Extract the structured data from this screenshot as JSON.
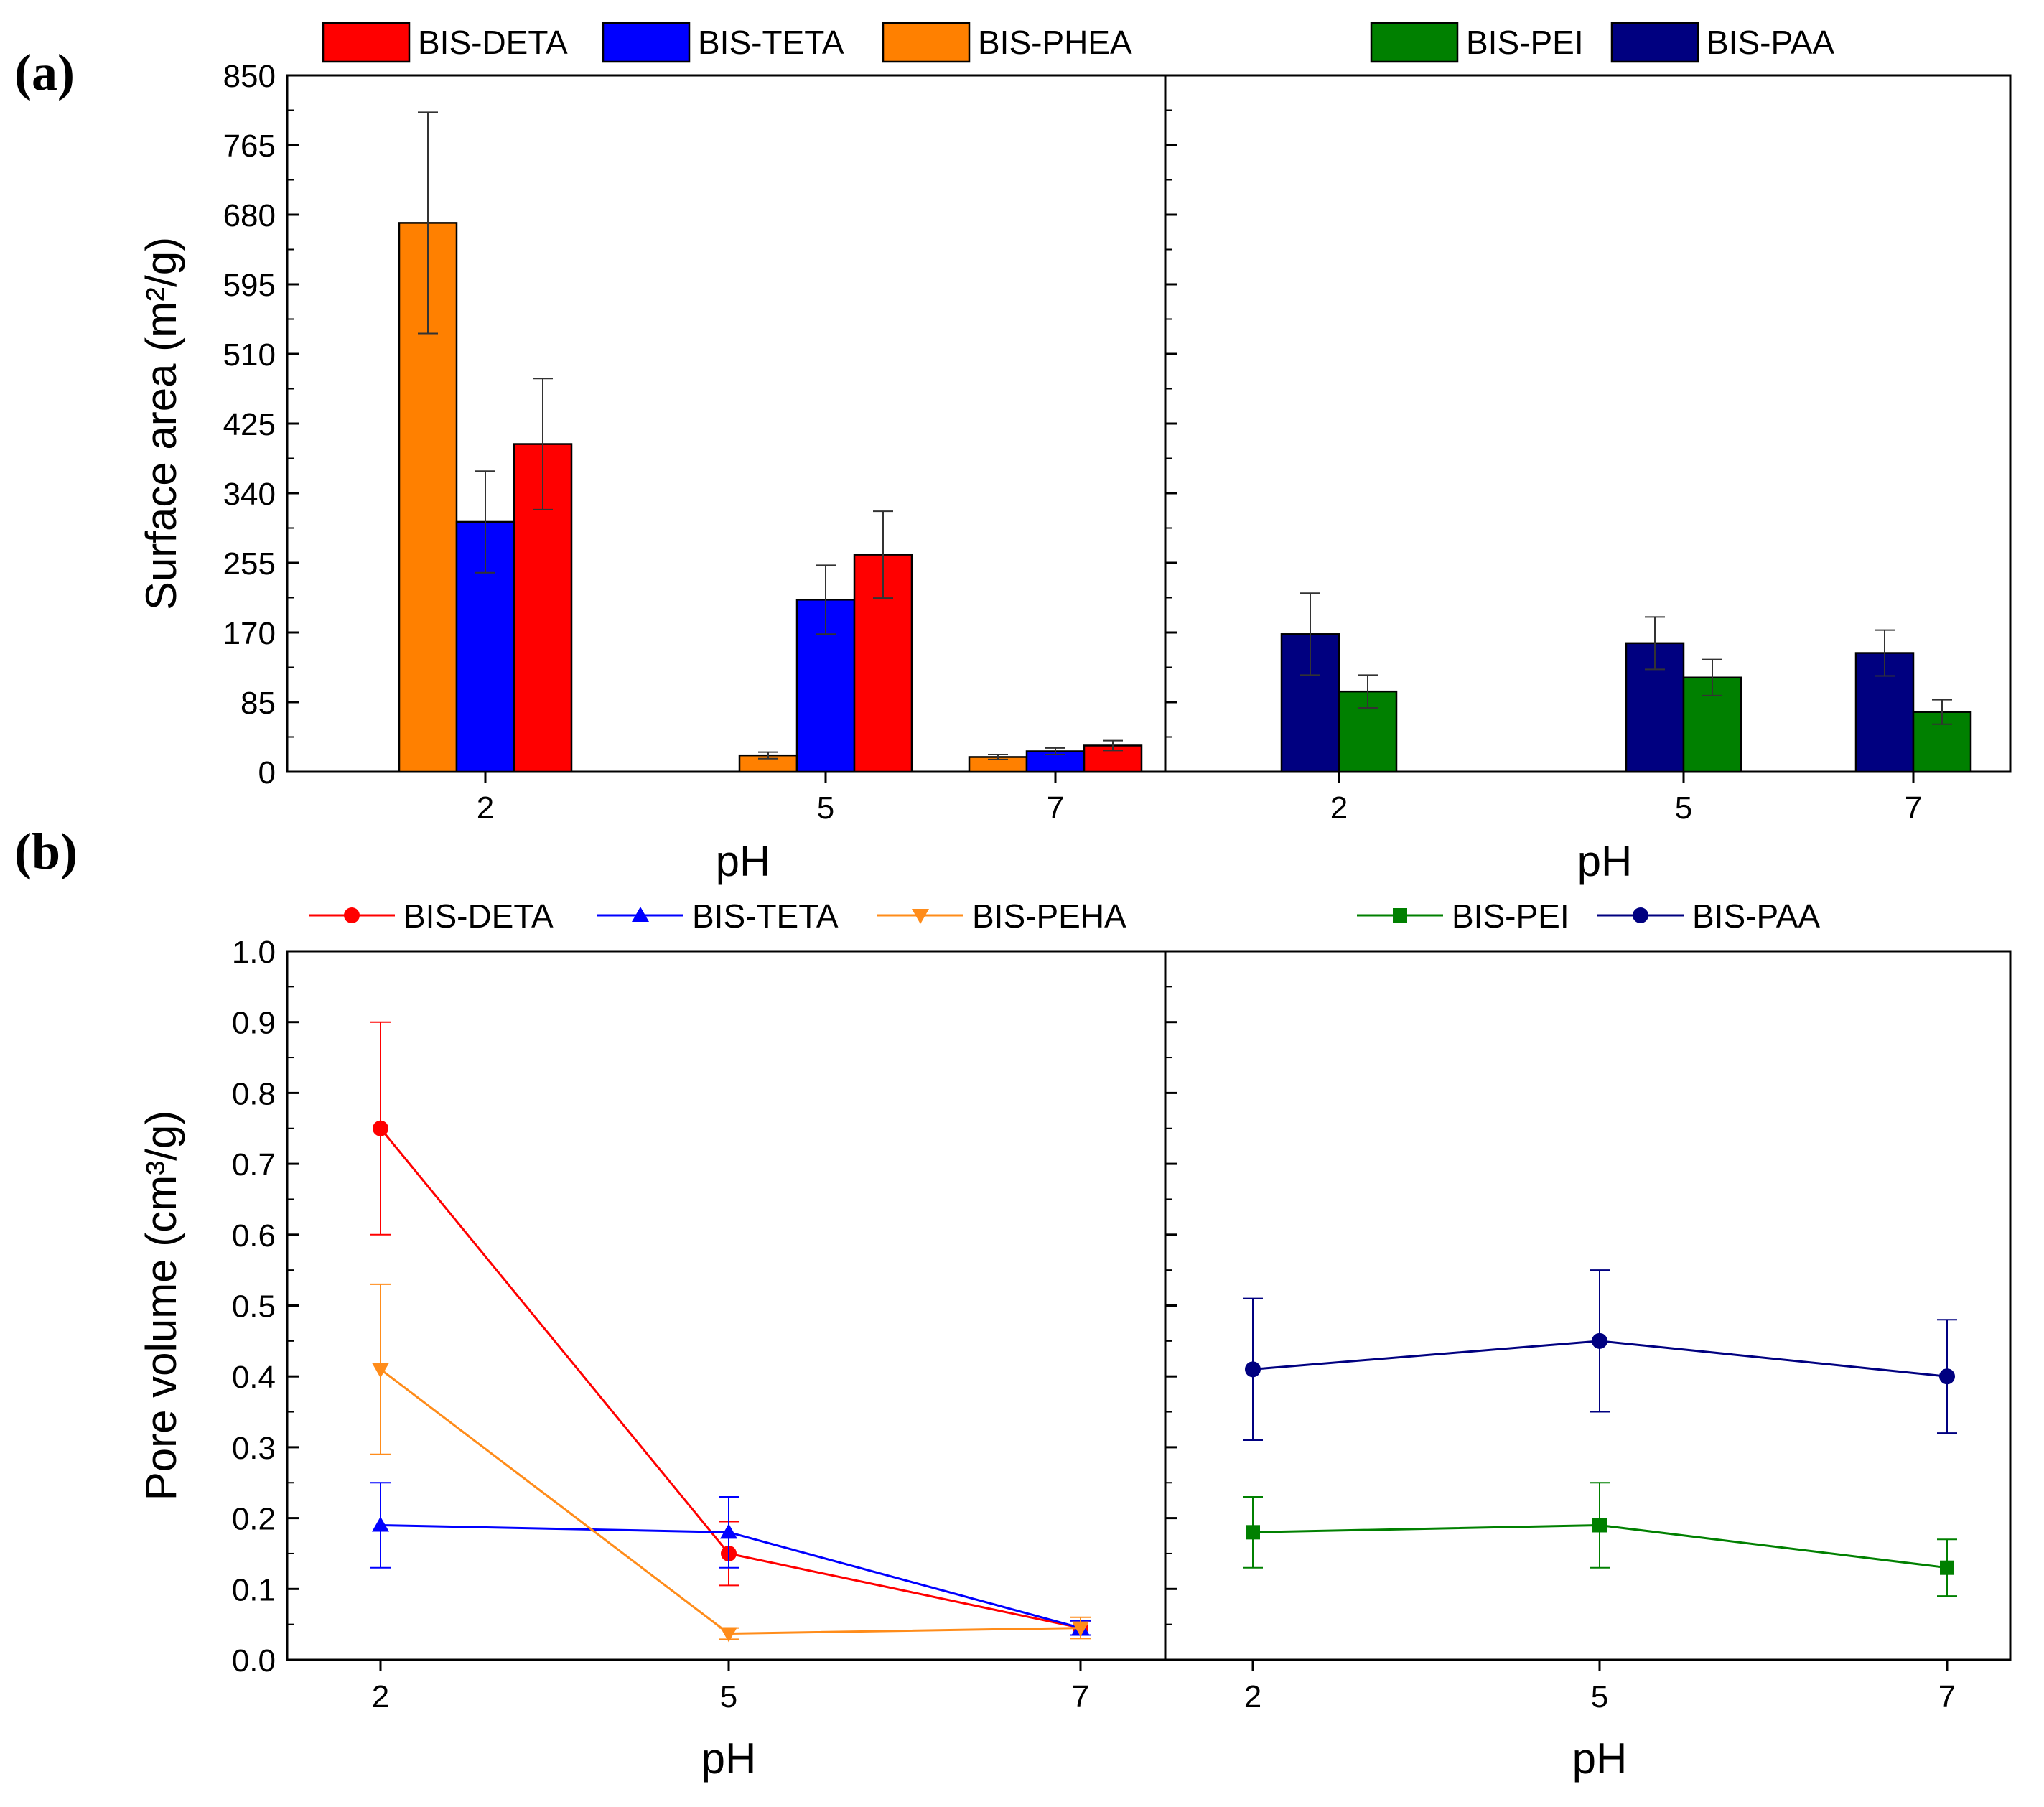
{
  "figure": {
    "panel_a_label": "(a)",
    "panel_b_label": "(b)"
  },
  "chart_data": [
    {
      "type": "bar",
      "panel": "(a)",
      "subplot": "left",
      "ylabel": "Surface area (m²/g)",
      "xlabel": "pH",
      "ylim": [
        0,
        850
      ],
      "yticks": [
        "0",
        "85",
        "170",
        "255",
        "340",
        "425",
        "510",
        "595",
        "680",
        "765",
        "850"
      ],
      "categories": [
        "2",
        "5",
        "7"
      ],
      "legend": [
        "BIS-DETA",
        "BIS-TETA",
        "BIS-PHEA"
      ],
      "series": [
        {
          "name": "BIS-PHEA",
          "color": "#FF8000",
          "values": [
            670,
            20,
            18
          ],
          "errors": [
            135,
            4,
            3
          ]
        },
        {
          "name": "BIS-TETA",
          "color": "#0000FF",
          "values": [
            305,
            210,
            25
          ],
          "errors": [
            62,
            42,
            4
          ]
        },
        {
          "name": "BIS-DETA",
          "color": "#FF0000",
          "values": [
            400,
            265,
            32
          ],
          "errors": [
            80,
            53,
            6
          ]
        }
      ]
    },
    {
      "type": "bar",
      "panel": "(a)",
      "subplot": "right",
      "xlabel": "pH",
      "ylim": [
        0,
        850
      ],
      "categories": [
        "2",
        "5",
        "7"
      ],
      "legend": [
        "BIS-PEI",
        "BIS-PAA"
      ],
      "series": [
        {
          "name": "BIS-PAA",
          "color": "#000080",
          "values": [
            168,
            157,
            145
          ],
          "errors": [
            50,
            32,
            28
          ]
        },
        {
          "name": "BIS-PEI",
          "color": "#008000",
          "values": [
            98,
            115,
            73
          ],
          "errors": [
            20,
            22,
            15
          ]
        }
      ]
    },
    {
      "type": "line",
      "panel": "(b)",
      "subplot": "left",
      "ylabel": "Pore volume (cm³/g)",
      "xlabel": "pH",
      "ylim": [
        0,
        1.0
      ],
      "yticks": [
        "0.0",
        "0.1",
        "0.2",
        "0.3",
        "0.4",
        "0.5",
        "0.6",
        "0.7",
        "0.8",
        "0.9",
        "1.0"
      ],
      "categories": [
        "2",
        "5",
        "7"
      ],
      "legend": [
        "BIS-DETA",
        "BIS-TETA",
        "BIS-PEHA"
      ],
      "series": [
        {
          "name": "BIS-DETA",
          "color": "#FF0000",
          "marker": "circle",
          "values": [
            0.75,
            0.15,
            0.045
          ],
          "errors": [
            0.15,
            0.045,
            0.01
          ]
        },
        {
          "name": "BIS-TETA",
          "color": "#0000FF",
          "marker": "triangle-up",
          "values": [
            0.19,
            0.18,
            0.045
          ],
          "errors": [
            0.06,
            0.05,
            0.01
          ]
        },
        {
          "name": "BIS-PEHA",
          "color": "#FF8C1A",
          "marker": "triangle-down",
          "values": [
            0.41,
            0.037,
            0.045
          ],
          "errors": [
            0.12,
            0.008,
            0.015
          ]
        }
      ]
    },
    {
      "type": "line",
      "panel": "(b)",
      "subplot": "right",
      "xlabel": "pH",
      "ylim": [
        0,
        1.0
      ],
      "categories": [
        "2",
        "5",
        "7"
      ],
      "legend": [
        "BIS-PEI",
        "BIS-PAA"
      ],
      "series": [
        {
          "name": "BIS-PEI",
          "color": "#008000",
          "marker": "square",
          "values": [
            0.18,
            0.19,
            0.13
          ],
          "errors": [
            0.05,
            0.06,
            0.04
          ]
        },
        {
          "name": "BIS-PAA",
          "color": "#000080",
          "marker": "circle",
          "values": [
            0.41,
            0.45,
            0.4
          ],
          "errors": [
            0.1,
            0.1,
            0.08
          ]
        }
      ]
    }
  ]
}
